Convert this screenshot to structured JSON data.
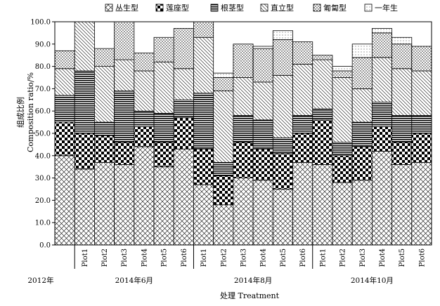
{
  "chart_data": {
    "type": "bar",
    "stacked": true,
    "xlabel": "处理 Treatment",
    "ylabel_cn": "组成比例",
    "ylabel_en": "Composition ratio/%",
    "ylim": [
      0,
      100
    ],
    "yticks": [
      "0.0",
      "10.0",
      "20.0",
      "30.0",
      "40.0",
      "50.0",
      "60.0",
      "70.0",
      "80.0",
      "90.0",
      "100.0"
    ],
    "legend_position": "top",
    "categories": [
      "",
      "Plot1",
      "Plot2",
      "Plot3",
      "Plot4",
      "Plot5",
      "Plot6",
      "Plot1",
      "Plot2",
      "Plot3",
      "Plot4",
      "Plot5",
      "Plot6",
      "Plot1",
      "Plot2",
      "Plot3",
      "Plot4",
      "Plot5",
      "Plot6"
    ],
    "groups": [
      {
        "label": "2012年",
        "count": 1
      },
      {
        "label": "2014年6月",
        "count": 6
      },
      {
        "label": "2014年8月",
        "count": 6
      },
      {
        "label": "2014年10月",
        "count": 6
      }
    ],
    "series": [
      {
        "name": "丛生型",
        "pattern": "crosshatch",
        "values": [
          40,
          34,
          37,
          36,
          44,
          35,
          43,
          27,
          18,
          30,
          29,
          25,
          37,
          36,
          28,
          29,
          42,
          36,
          37
        ]
      },
      {
        "name": "莲座型",
        "pattern": "checker",
        "values": [
          15,
          16,
          12,
          10,
          9,
          11,
          14,
          16,
          13,
          16,
          14,
          16,
          13,
          20,
          12,
          15,
          11,
          10,
          13
        ]
      },
      {
        "name": "根茎型",
        "pattern": "hlines",
        "values": [
          12,
          28,
          6,
          23,
          7,
          13,
          8,
          25,
          6,
          12,
          13,
          7,
          8,
          5,
          6,
          11,
          11,
          12,
          8
        ]
      },
      {
        "name": "直立型",
        "pattern": "diagonal",
        "values": [
          12,
          23,
          25,
          14,
          18,
          23,
          14,
          25,
          32,
          17,
          17,
          28,
          23,
          22,
          29,
          15,
          20,
          21,
          20
        ]
      },
      {
        "name": "匍匐型",
        "pattern": "dots",
        "values": [
          8,
          0,
          8,
          17,
          8,
          11,
          18,
          7,
          6,
          15,
          15,
          16,
          10,
          2,
          3,
          14,
          11,
          11,
          11
        ]
      },
      {
        "name": "一年生",
        "pattern": "small-dots",
        "values": [
          0,
          0,
          0,
          0,
          0,
          0,
          0,
          4,
          2,
          0,
          1,
          4,
          0,
          0,
          2,
          6,
          2,
          3,
          0
        ]
      }
    ]
  }
}
